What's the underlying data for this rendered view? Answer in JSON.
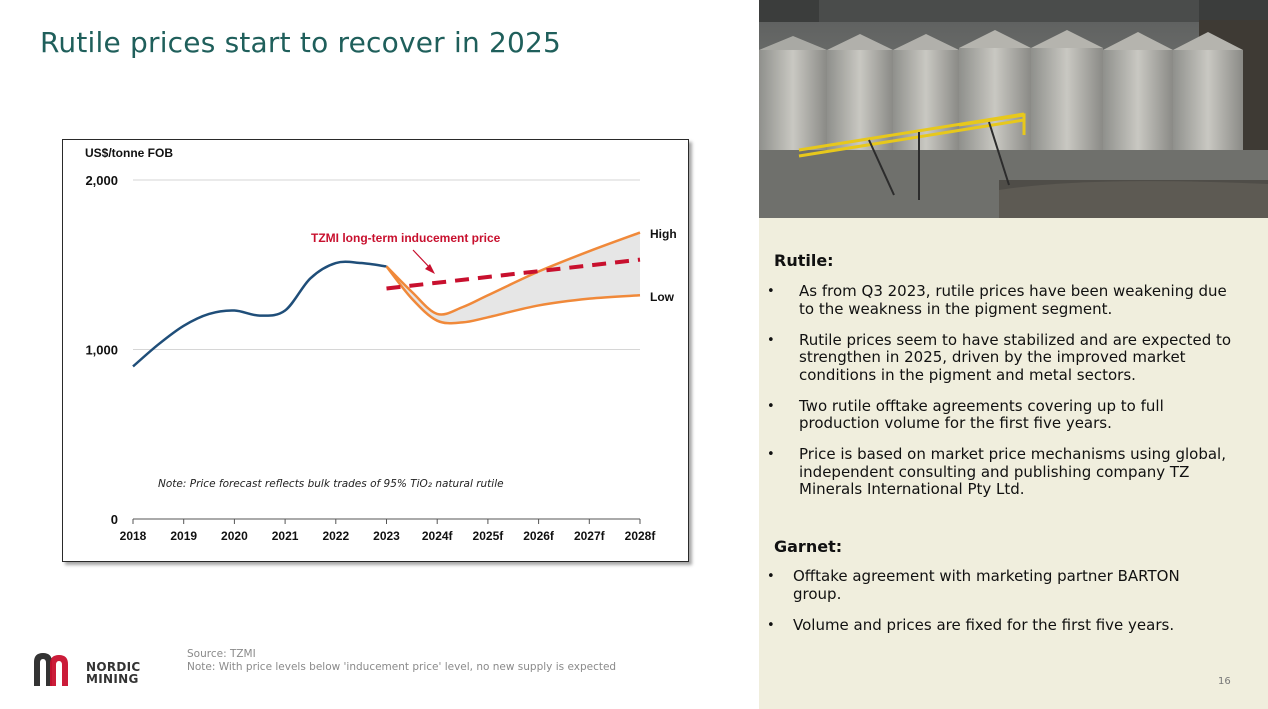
{
  "slide": {
    "title": "Rutile prices start to recover in 2025",
    "page_number": "16"
  },
  "source": {
    "line1": "Source: TZMI",
    "line2": "Note: With price levels below 'inducement price' level, no new supply is expected"
  },
  "logo": {
    "line1": "NORDIC",
    "line2": "MINING",
    "colors": {
      "dark": "#333333",
      "red": "#c8102e"
    }
  },
  "chart_data": {
    "type": "line",
    "ylabel": "US$/tonne FOB",
    "categories": [
      "2018",
      "2019",
      "2020",
      "2021",
      "2022",
      "2023",
      "2024f",
      "2025f",
      "2026f",
      "2027f",
      "2028f"
    ],
    "y_ticks": [
      "2,000",
      "1,000",
      "0"
    ],
    "ylim": [
      0,
      2000
    ],
    "grid": true,
    "series": [
      {
        "name": "",
        "color": "#1f4e79",
        "x": [
          0,
          0.5,
          1,
          1.5,
          2,
          2.5,
          3,
          3.5,
          4,
          4.5,
          5
        ],
        "values": [
          900,
          1030,
          1140,
          1210,
          1230,
          1200,
          1230,
          1420,
          1510,
          1510,
          1490
        ]
      },
      {
        "name": "High",
        "color": "#f0893a",
        "x": [
          5,
          5.5,
          6,
          6.5,
          7,
          8,
          9,
          10
        ],
        "values": [
          1490,
          1340,
          1210,
          1250,
          1320,
          1460,
          1580,
          1690
        ]
      },
      {
        "name": "Low",
        "color": "#f0893a",
        "x": [
          5,
          5.5,
          6,
          6.5,
          7,
          8,
          9,
          10
        ],
        "values": [
          1490,
          1300,
          1170,
          1160,
          1190,
          1260,
          1300,
          1320
        ]
      },
      {
        "name": "TZMI long-term inducement price",
        "color": "#c8102e",
        "style": "dashed",
        "x": [
          5,
          10
        ],
        "values": [
          1360,
          1530
        ]
      }
    ],
    "band": {
      "between": [
        "High",
        "Low"
      ],
      "color": "#e6e6e6"
    },
    "annotations": {
      "inducement_label": "TZMI long-term inducement price",
      "high_label": "High",
      "low_label": "Low",
      "note": "Note: Price forecast reflects bulk trades of 95% TiO₂ natural rutile"
    }
  },
  "right_panel": {
    "rutile": {
      "heading": "Rutile:",
      "bullets": [
        [
          "As from Q3 2023, rutile prices have been weakening due",
          "to the weakness in the pigment segment."
        ],
        [
          "Rutile prices seem to have stabilized and are expected to",
          "strengthen in 2025, driven by the improved market",
          "conditions in the pigment and metal sectors."
        ],
        [
          "Two rutile offtake agreements covering up to full",
          "production volume for the first five years."
        ],
        [
          "Price is based on market price mechanisms using global,",
          "independent consulting and publishing company TZ",
          "Minerals International Pty Ltd."
        ]
      ]
    },
    "garnet": {
      "heading": "Garnet:",
      "bullets": [
        [
          "Offtake agreement with marketing partner BARTON",
          "group."
        ],
        [
          "Volume and prices are fixed for the first five years."
        ]
      ]
    },
    "bullet_symbol": "•"
  }
}
